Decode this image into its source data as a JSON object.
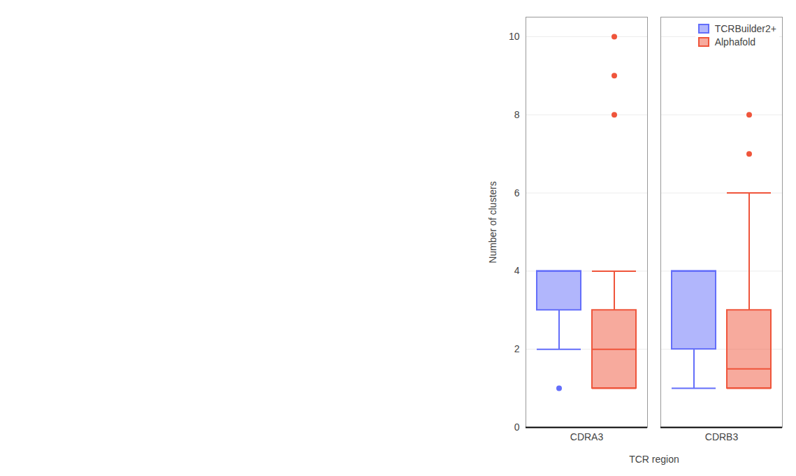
{
  "chart_data": {
    "type": "box",
    "x_label": "TCR region",
    "y_label": "Number of clusters",
    "categories": [
      "CDRA3",
      "CDRB3"
    ],
    "ylim": [
      0,
      10.5
    ],
    "yticks": [
      0,
      2,
      4,
      6,
      8,
      10
    ],
    "grid": true,
    "legend": "top-right",
    "series": [
      {
        "name": "TCRBuilder2+",
        "color": "#636efa",
        "boxes": [
          {
            "min": 2,
            "q1": 3,
            "median": 4,
            "q3": 4,
            "max": 4,
            "outliers": [
              1
            ]
          },
          {
            "min": 1,
            "q1": 2,
            "median": 4,
            "q3": 4,
            "max": 4,
            "outliers": []
          }
        ]
      },
      {
        "name": "Alphafold",
        "color": "#ef553b",
        "boxes": [
          {
            "min": 1,
            "q1": 1,
            "median": 2,
            "q3": 3,
            "max": 4,
            "outliers": [
              8,
              9,
              10
            ]
          },
          {
            "min": 1,
            "q1": 1,
            "median": 1.5,
            "q3": 3,
            "max": 6,
            "outliers": [
              7,
              8
            ]
          }
        ]
      }
    ]
  }
}
